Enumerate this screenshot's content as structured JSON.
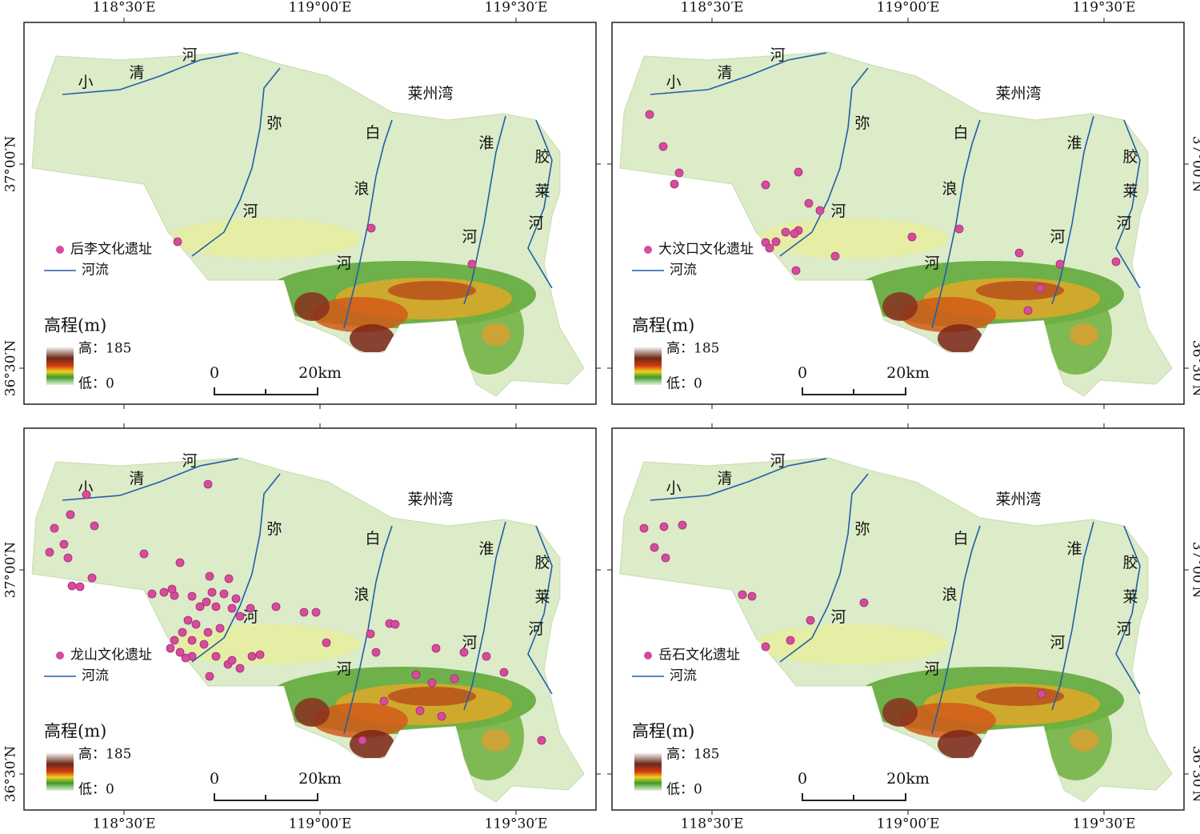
{
  "longitude_labels": [
    "118°30′E",
    "119°00′E",
    "119°30′E"
  ],
  "latitude_labels": [
    "37°00′N",
    "36°30′N"
  ],
  "sea_label": "莱州湾",
  "rivers": {
    "xiaoqing": [
      "小",
      "清",
      "河"
    ],
    "mi": [
      "弥",
      "河"
    ],
    "bailang": [
      "白",
      "浪",
      "河"
    ],
    "wei": [
      "淮",
      "河"
    ],
    "jiaolai": [
      "胶",
      "莱",
      "河"
    ]
  },
  "legend": {
    "river": "河流",
    "elevation_title": "高程(m)",
    "high": "高：185",
    "low": "低：0"
  },
  "scale_bar": [
    "0",
    "20km"
  ],
  "panels": [
    {
      "site_legend": "后李文化遗址"
    },
    {
      "site_legend": "大汶口文化遗址"
    },
    {
      "site_legend": "龙山文化遗址"
    },
    {
      "site_legend": "岳石文化遗址"
    }
  ]
}
